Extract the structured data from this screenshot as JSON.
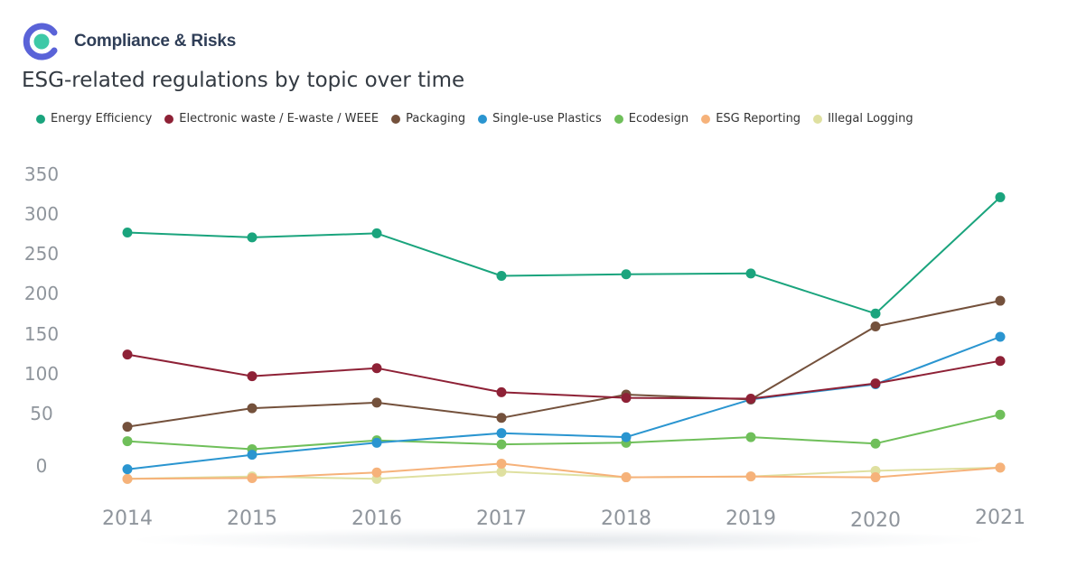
{
  "header": {
    "brand": "Compliance & Risks",
    "title": "ESG-related regulations by topic over time"
  },
  "colors": {
    "logo_outer": "#5a63d8",
    "logo_inner": "#3ec9a7"
  },
  "chart_data": {
    "type": "line",
    "x": [
      "2014",
      "2015",
      "2016",
      "2017",
      "2018",
      "2019",
      "2020",
      "2021"
    ],
    "yticks": [
      "350",
      "300",
      "250",
      "200",
      "150",
      "100",
      "50",
      "0"
    ],
    "ylim": [
      0,
      350
    ],
    "grid": false,
    "legend_position": "top",
    "series": [
      {
        "name": "Energy Efficiency",
        "color": "#1aa47d",
        "values": [
          292,
          286,
          291,
          238,
          240,
          241,
          191,
          336
        ]
      },
      {
        "name": "Electronic waste / E-waste / WEEE",
        "color": "#8e2136",
        "values": [
          140,
          113,
          123,
          93,
          86,
          85,
          104,
          132
        ]
      },
      {
        "name": "Packaging",
        "color": "#74513c",
        "values": [
          50,
          73,
          80,
          61,
          90,
          84,
          175,
          207
        ]
      },
      {
        "name": "Single-use Plastics",
        "color": "#2a95d0",
        "values": [
          -3,
          15,
          30,
          42,
          37,
          84,
          103,
          162
        ]
      },
      {
        "name": "Ecodesign",
        "color": "#6fbf5a",
        "values": [
          32,
          22,
          33,
          28,
          30,
          37,
          29,
          65
        ]
      },
      {
        "name": "ESG Reporting",
        "color": "#f6b27a",
        "values": [
          -15,
          -14,
          -7,
          4,
          -13,
          -12,
          -13,
          -1
        ]
      },
      {
        "name": "Illegal Logging",
        "color": "#dfe0a0",
        "values": [
          -15,
          -12,
          -15,
          -6,
          -13,
          -12,
          -5,
          -1
        ]
      }
    ]
  }
}
